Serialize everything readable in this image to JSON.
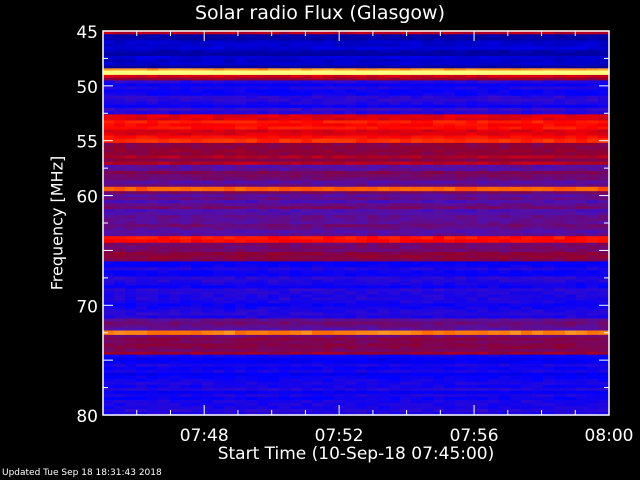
{
  "chart_data": {
    "type": "heatmap",
    "title": "Solar radio Flux (Glasgow)",
    "xlabel": "Start Time (10-Sep-18 07:45:00)",
    "ylabel": "Frequency [MHz]",
    "xlim": [
      "07:45",
      "08:00"
    ],
    "ylim": [
      45,
      80
    ],
    "y_direction": "increasing downward",
    "x_ticks": [
      "07:48",
      "07:52",
      "07:56",
      "08:00"
    ],
    "y_ticks": [
      "45",
      "50",
      "55",
      "60",
      "70",
      "80"
    ],
    "colormap": [
      "#0000a0",
      "#0000ff",
      "#5010b0",
      "#900030",
      "#ff0000",
      "#ff7000",
      "#ffff80"
    ],
    "bands": [
      {
        "from": 45.0,
        "to": 45.3,
        "level": 0.62
      },
      {
        "from": 45.3,
        "to": 48.4,
        "level": 0.05
      },
      {
        "from": 48.4,
        "to": 48.6,
        "level": 0.85
      },
      {
        "from": 48.6,
        "to": 49.0,
        "level": 1.0
      },
      {
        "from": 49.0,
        "to": 49.5,
        "level": 0.55
      },
      {
        "from": 49.5,
        "to": 52.0,
        "level": 0.2
      },
      {
        "from": 52.0,
        "to": 52.6,
        "level": 0.3
      },
      {
        "from": 52.6,
        "to": 54.8,
        "level": 0.65
      },
      {
        "from": 54.8,
        "to": 55.2,
        "level": 0.72
      },
      {
        "from": 55.2,
        "to": 57.2,
        "level": 0.52
      },
      {
        "from": 57.2,
        "to": 59.2,
        "level": 0.4
      },
      {
        "from": 59.2,
        "to": 59.6,
        "level": 0.78
      },
      {
        "from": 59.6,
        "to": 63.7,
        "level": 0.38
      },
      {
        "from": 63.7,
        "to": 64.3,
        "level": 0.68
      },
      {
        "from": 64.3,
        "to": 66.0,
        "level": 0.48
      },
      {
        "from": 66.0,
        "to": 71.2,
        "level": 0.22
      },
      {
        "from": 71.2,
        "to": 72.3,
        "level": 0.36
      },
      {
        "from": 72.3,
        "to": 72.7,
        "level": 0.85
      },
      {
        "from": 72.7,
        "to": 74.5,
        "level": 0.46
      },
      {
        "from": 74.5,
        "to": 80.0,
        "level": 0.2
      }
    ]
  },
  "footer": {
    "updated": "Updated Tue Sep 18 18:31:43 2018"
  }
}
